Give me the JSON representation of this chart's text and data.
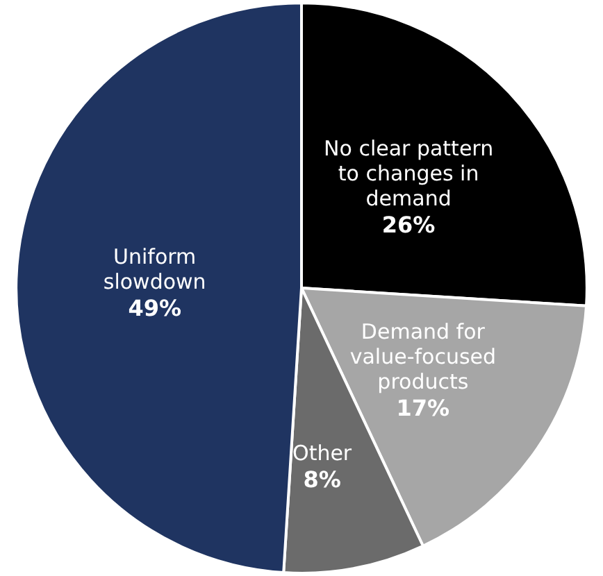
{
  "chart_data": {
    "type": "pie",
    "categories": [
      "No clear pattern to changes in demand",
      "Demand for value-focused products",
      "Other",
      "Uniform slowdown"
    ],
    "values": [
      26,
      17,
      8,
      49
    ],
    "colors": [
      "#000000",
      "#a6a6a6",
      "#6b6b6b",
      "#1f3461"
    ],
    "value_labels": [
      "26%",
      "17%",
      "8%",
      "49%"
    ],
    "legend": false
  }
}
